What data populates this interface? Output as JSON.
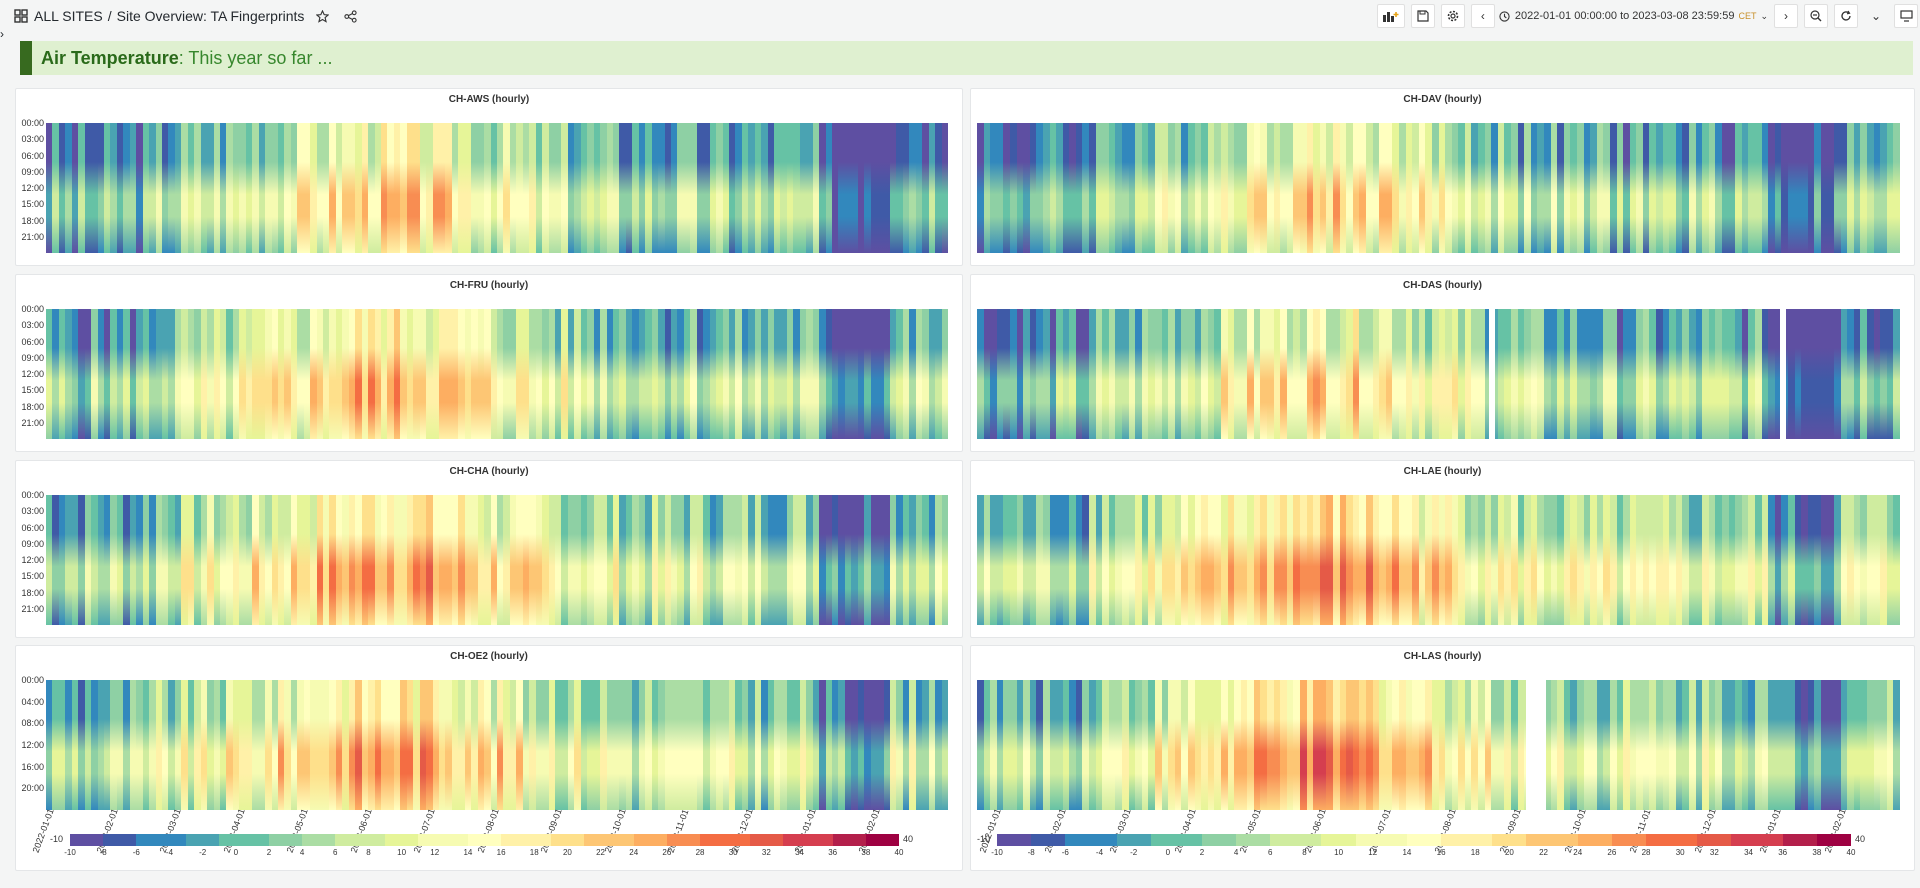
{
  "header": {
    "home": "ALL SITES",
    "separator": "/",
    "title": "Site Overview: TA Fingerprints",
    "time_range": "2022-01-01 00:00:00 to 2023-03-08 23:59:59",
    "timezone": "CET"
  },
  "banner": {
    "bold": "Air Temperature",
    "rest": ": This year so far ..."
  },
  "colors": {
    "accent": "#376a1f",
    "banner_bg": "#dff0d0",
    "scale": [
      "#5e4fa2",
      "#3f5aa7",
      "#3288bd",
      "#4aa3b2",
      "#66c2a5",
      "#8ed0a4",
      "#abdda4",
      "#cfec9f",
      "#e6f598",
      "#f6fbb2",
      "#ffffbf",
      "#fff1a8",
      "#fee08b",
      "#fdc674",
      "#fdae61",
      "#f88d52",
      "#f46d43",
      "#e55a47",
      "#d53e4f",
      "#b31f4b",
      "#9e0142"
    ]
  },
  "panels": [
    {
      "title": "CH-AWS (hourly)"
    },
    {
      "title": "CH-DAV (hourly)"
    },
    {
      "title": "CH-FRU (hourly)"
    },
    {
      "title": "CH-DAS (hourly)"
    },
    {
      "title": "CH-CHA (hourly)"
    },
    {
      "title": "CH-LAE (hourly)"
    },
    {
      "title": "CH-OE2 (hourly)"
    },
    {
      "title": "CH-LAS (hourly)"
    }
  ],
  "yticks_3h": [
    "00:00",
    "03:00",
    "06:00",
    "09:00",
    "12:00",
    "15:00",
    "18:00",
    "21:00"
  ],
  "yticks_4h": [
    "00:00",
    "04:00",
    "08:00",
    "12:00",
    "16:00",
    "20:00"
  ],
  "xticks": [
    "2022-01-01",
    "2022-02-01",
    "2022-03-01",
    "2022-04-01",
    "2022-05-01",
    "2022-06-01",
    "2022-07-01",
    "2022-08-01",
    "2022-09-01",
    "2022-10-01",
    "2022-11-01",
    "2022-12-01",
    "2023-01-01",
    "2023-02-01"
  ],
  "legend": {
    "min": "-10",
    "max": "40",
    "ticks": [
      "-10",
      "-8",
      "-6",
      "-4",
      "-2",
      "0",
      "2",
      "4",
      "6",
      "8",
      "10",
      "12",
      "14",
      "16",
      "18",
      "20",
      "22",
      "24",
      "26",
      "28",
      "30",
      "32",
      "34",
      "36",
      "38",
      "40"
    ]
  }
}
